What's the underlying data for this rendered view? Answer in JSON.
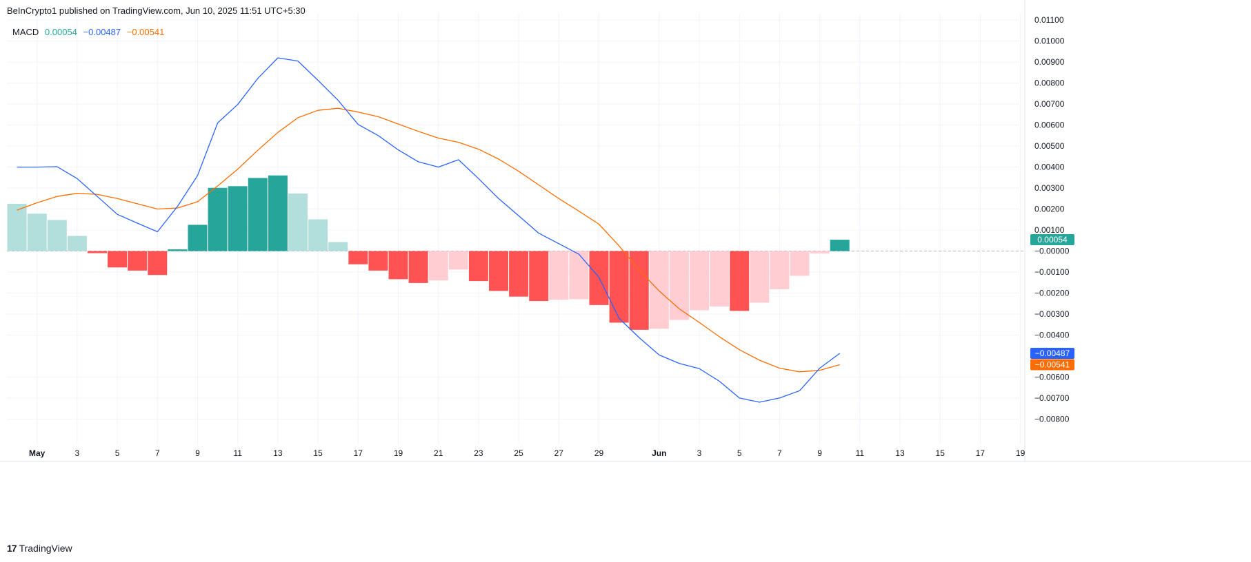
{
  "header": {
    "publisher_text": "BeInCrypto1 published on TradingView.com, Jun 10, 2025 11:51 UTC+5:30"
  },
  "legend": {
    "indicator": "MACD",
    "histogram_value": "0.00054",
    "macd_value": "−0.00487",
    "signal_value": "−0.00541"
  },
  "footer": {
    "logo_glyph": "17",
    "brand": "TradingView"
  },
  "colors": {
    "macd_line": "#2962ff",
    "signal_line": "#ff6d00",
    "hist_pos_strong": "#26a69a",
    "hist_pos_weak": "#b2dfdb",
    "hist_neg_strong": "#ff5252",
    "hist_neg_weak": "#ffcdd2",
    "grid": "#f0f3fa",
    "zero_line": "#b2b5be",
    "text": "#131722"
  },
  "chart_data": {
    "type": "bar",
    "title": "",
    "xlabel": "",
    "ylabel": "",
    "ylim": [
      -0.0092,
      0.0113
    ],
    "grid": true,
    "legend_position": "top-left",
    "x_tick_labels": [
      "May",
      "3",
      "5",
      "7",
      "9",
      "11",
      "13",
      "15",
      "17",
      "19",
      "21",
      "23",
      "25",
      "27",
      "29",
      "Jun",
      "3",
      "5",
      "7",
      "9",
      "11",
      "13",
      "15",
      "17",
      "19"
    ],
    "y_tick_labels": [
      "0.01100",
      "0.01000",
      "0.00900",
      "0.00800",
      "0.00700",
      "0.00600",
      "0.00500",
      "0.00400",
      "0.00300",
      "0.00200",
      "0.00100",
      "−0.00000",
      "−0.00100",
      "−0.00200",
      "−0.00300",
      "−0.00400",
      "−0.00600",
      "−0.00700",
      "−0.00800"
    ],
    "y_tick_values": [
      0.011,
      0.01,
      0.009,
      0.008,
      0.007,
      0.006,
      0.005,
      0.004,
      0.003,
      0.002,
      0.001,
      0,
      -0.001,
      -0.002,
      -0.003,
      -0.004,
      -0.006,
      -0.007,
      -0.008
    ],
    "dates": [
      "2025-04-30",
      "2025-05-01",
      "2025-05-02",
      "2025-05-03",
      "2025-05-04",
      "2025-05-05",
      "2025-05-06",
      "2025-05-07",
      "2025-05-08",
      "2025-05-09",
      "2025-05-10",
      "2025-05-11",
      "2025-05-12",
      "2025-05-13",
      "2025-05-14",
      "2025-05-15",
      "2025-05-16",
      "2025-05-17",
      "2025-05-18",
      "2025-05-19",
      "2025-05-20",
      "2025-05-21",
      "2025-05-22",
      "2025-05-23",
      "2025-05-24",
      "2025-05-25",
      "2025-05-26",
      "2025-05-27",
      "2025-05-28",
      "2025-05-29",
      "2025-05-30",
      "2025-05-31",
      "2025-06-01",
      "2025-06-02",
      "2025-06-03",
      "2025-06-04",
      "2025-06-05",
      "2025-06-06",
      "2025-06-07",
      "2025-06-08",
      "2025-06-09",
      "2025-06-10"
    ],
    "series": [
      {
        "name": "Histogram",
        "kind": "histogram",
        "values": [
          0.00225,
          0.00178,
          0.00148,
          0.00072,
          -0.0001,
          -0.00078,
          -0.00093,
          -0.00114,
          8e-05,
          0.00125,
          0.00301,
          0.00309,
          0.00348,
          0.0036,
          0.00274,
          0.00151,
          0.00043,
          -0.00063,
          -0.00093,
          -0.00134,
          -0.00152,
          -0.0014,
          -0.00088,
          -0.00143,
          -0.0019,
          -0.00217,
          -0.00238,
          -0.00232,
          -0.00229,
          -0.00257,
          -0.00341,
          -0.00375,
          -0.0037,
          -0.00328,
          -0.00282,
          -0.00264,
          -0.00285,
          -0.00246,
          -0.00182,
          -0.00118,
          -0.00012,
          0.00054
        ]
      },
      {
        "name": "MACD",
        "kind": "line",
        "values": [
          0.004,
          0.004,
          0.00402,
          0.00345,
          0.0026,
          0.00175,
          0.00133,
          0.00092,
          0.00213,
          0.0036,
          0.0061,
          0.00698,
          0.00822,
          0.0092,
          0.00905,
          0.00813,
          0.00718,
          0.00603,
          0.0055,
          0.00482,
          0.00425,
          0.004,
          0.00435,
          0.00345,
          0.0025,
          0.00168,
          0.00085,
          0.00035,
          -0.00015,
          -0.00125,
          -0.0032,
          -0.00412,
          -0.00495,
          -0.00535,
          -0.0056,
          -0.0062,
          -0.007,
          -0.0072,
          -0.007,
          -0.00665,
          -0.00558,
          -0.00487
        ]
      },
      {
        "name": "Signal",
        "kind": "line",
        "values": [
          0.00195,
          0.0023,
          0.0026,
          0.00275,
          0.0027,
          0.0025,
          0.00225,
          0.002,
          0.00205,
          0.00235,
          0.0031,
          0.0039,
          0.0048,
          0.00565,
          0.00635,
          0.0067,
          0.0068,
          0.00662,
          0.0064,
          0.00605,
          0.0057,
          0.00538,
          0.00518,
          0.00485,
          0.00438,
          0.0038,
          0.00315,
          0.0025,
          0.0019,
          0.00128,
          0.00025,
          -0.0009,
          -0.0019,
          -0.00275,
          -0.0034,
          -0.00408,
          -0.0047,
          -0.0052,
          -0.00558,
          -0.00575,
          -0.00568,
          -0.00541
        ]
      }
    ],
    "price_tags": [
      {
        "series": "Histogram",
        "label": "0.00054",
        "value": 0.00054,
        "color": "#26a69a"
      },
      {
        "series": "MACD",
        "label": "−0.00487",
        "value": -0.00487,
        "color": "#2962ff"
      },
      {
        "series": "Signal",
        "label": "−0.00541",
        "value": -0.00541,
        "color": "#ff6d00"
      }
    ]
  }
}
